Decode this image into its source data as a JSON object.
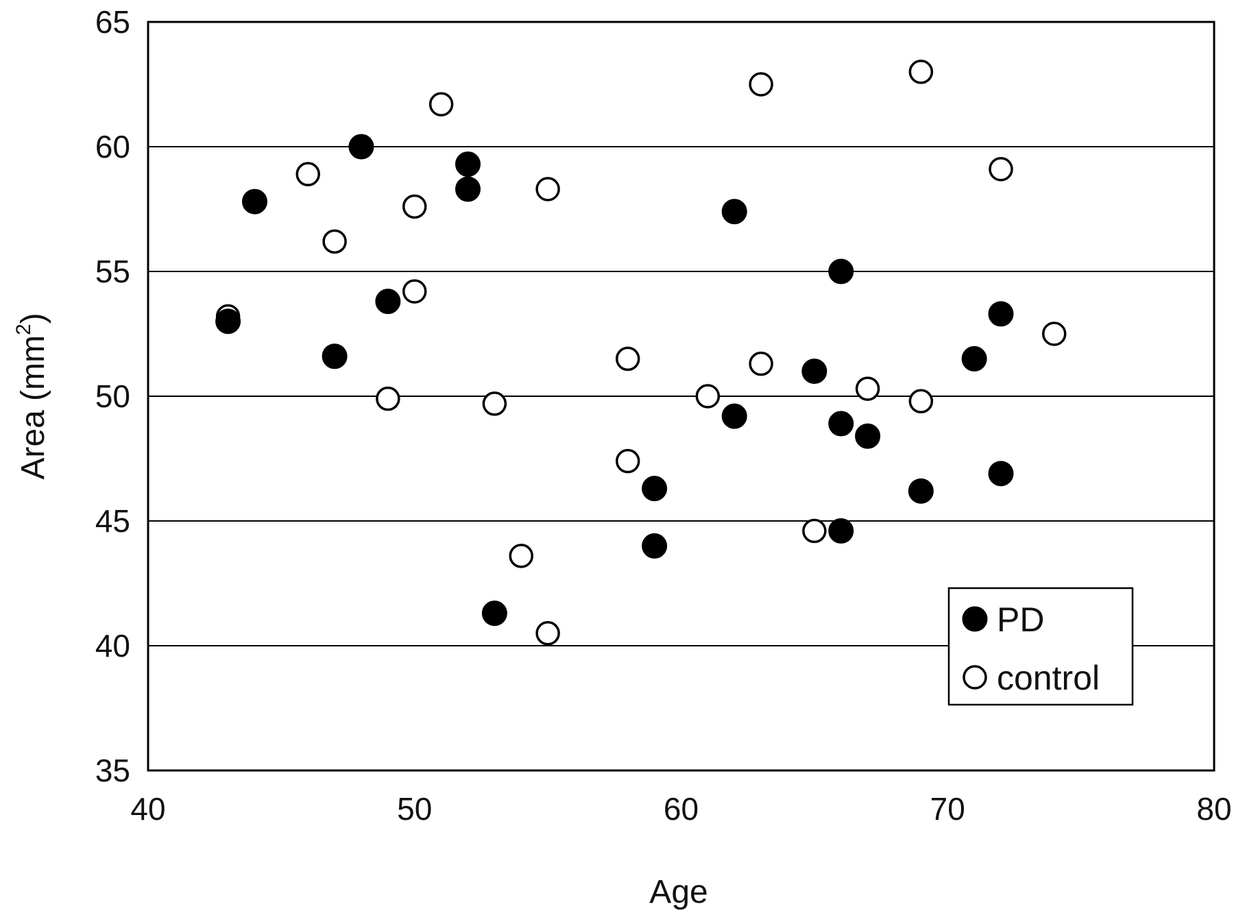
{
  "chart_data": {
    "type": "scatter",
    "xlabel": "Age",
    "ylabel": "Area (mm",
    "ylabel_sup": "2",
    "ylabel_close": ")",
    "xlim": [
      40,
      80
    ],
    "ylim": [
      35,
      65
    ],
    "x_ticks": [
      "40",
      "50",
      "60",
      "70",
      "80"
    ],
    "y_ticks": [
      "35",
      "40",
      "45",
      "50",
      "55",
      "60",
      "65"
    ],
    "grid": "horizontal",
    "legend_position": "bottom-right",
    "marker_color": "#000000",
    "series": [
      {
        "name": "PD",
        "marker": "filled-circle",
        "points": [
          [
            43,
            53.0
          ],
          [
            44,
            57.8
          ],
          [
            47,
            51.6
          ],
          [
            48,
            60.0
          ],
          [
            49,
            53.8
          ],
          [
            52,
            59.3
          ],
          [
            52,
            58.3
          ],
          [
            53,
            41.3
          ],
          [
            59,
            46.3
          ],
          [
            59,
            44.0
          ],
          [
            62,
            57.4
          ],
          [
            62,
            49.2
          ],
          [
            65,
            51.0
          ],
          [
            66,
            55.0
          ],
          [
            66,
            48.9
          ],
          [
            66,
            44.6
          ],
          [
            67,
            48.4
          ],
          [
            69,
            46.2
          ],
          [
            71,
            51.5
          ],
          [
            72,
            53.3
          ],
          [
            72,
            46.9
          ]
        ]
      },
      {
        "name": "control",
        "marker": "open-circle",
        "points": [
          [
            43,
            53.2
          ],
          [
            46,
            58.9
          ],
          [
            47,
            56.2
          ],
          [
            49,
            49.9
          ],
          [
            50,
            57.6
          ],
          [
            50,
            54.2
          ],
          [
            51,
            61.7
          ],
          [
            53,
            49.7
          ],
          [
            54,
            43.6
          ],
          [
            55,
            58.3
          ],
          [
            55,
            40.5
          ],
          [
            58,
            51.5
          ],
          [
            58,
            47.4
          ],
          [
            61,
            50.0
          ],
          [
            63,
            62.5
          ],
          [
            63,
            51.3
          ],
          [
            65,
            44.6
          ],
          [
            67,
            50.3
          ],
          [
            69,
            63.0
          ],
          [
            69,
            49.8
          ],
          [
            72,
            59.1
          ],
          [
            74,
            52.5
          ]
        ]
      }
    ]
  }
}
